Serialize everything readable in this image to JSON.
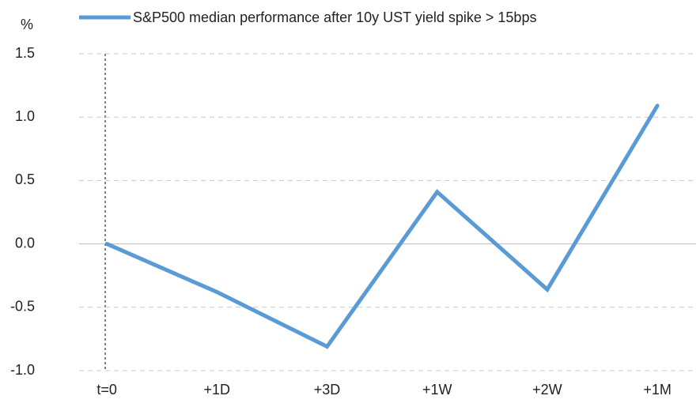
{
  "chart_data": {
    "type": "line",
    "y_label": "%",
    "categories": [
      "t=0",
      "+1D",
      "+3D",
      "+1W",
      "+2W",
      "+1M"
    ],
    "series": [
      {
        "name": "S&P500 median performance after 10y UST yield spike > 15bps",
        "color": "#5b9bd5",
        "values": [
          0,
          -0.38,
          -0.81,
          0.41,
          -0.36,
          1.09
        ]
      }
    ],
    "ylim": [
      -1.0,
      1.5
    ],
    "yticks": [
      {
        "value": -1.0,
        "label": "-1.0"
      },
      -0.5,
      {
        "value": 0,
        "label": "0.0"
      },
      0.5,
      {
        "value": 1.0,
        "label": "1.0"
      },
      1.5
    ],
    "grid": true,
    "legend": "top"
  }
}
